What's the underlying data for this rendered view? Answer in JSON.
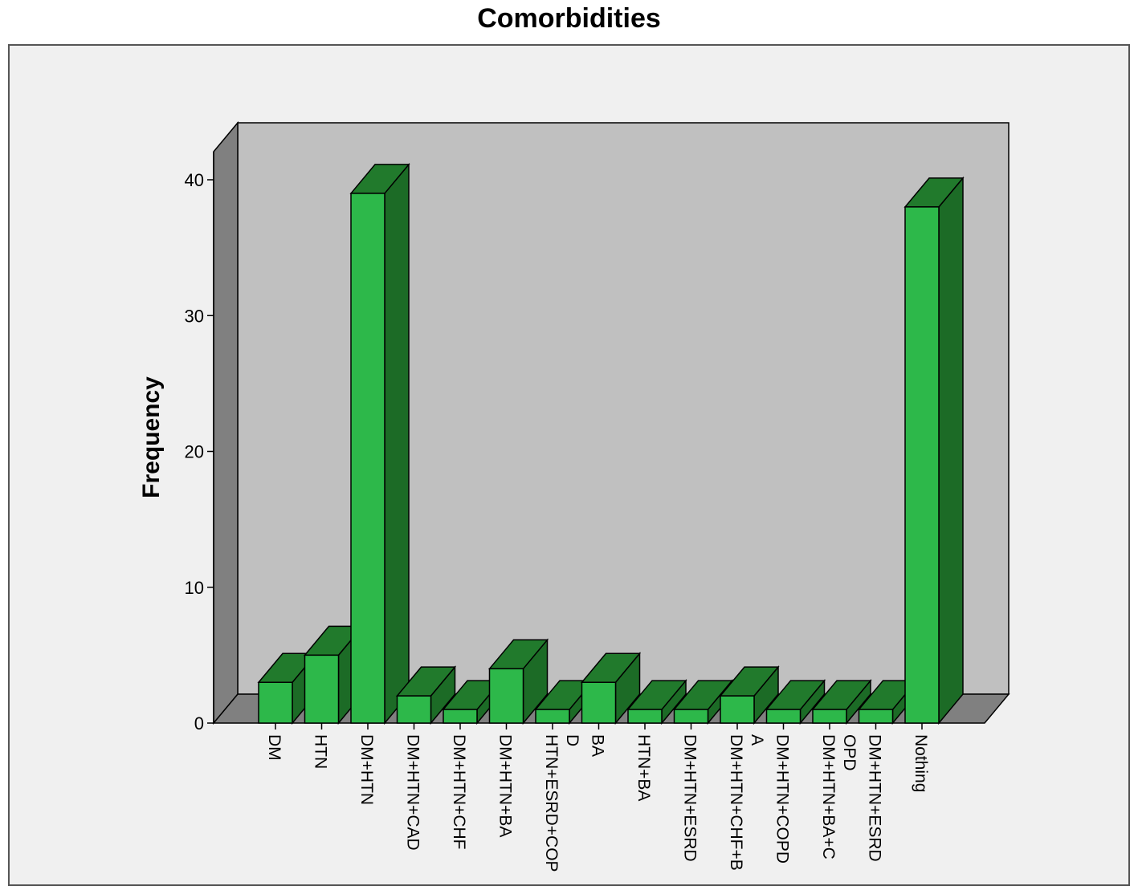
{
  "chart_data": {
    "type": "bar",
    "title": "Comorbidities",
    "xlabel": "",
    "ylabel": "Frequency",
    "ylim": [
      0,
      40
    ],
    "yticks": [
      0,
      10,
      20,
      30,
      40
    ],
    "grid": false,
    "categories": [
      [
        "DM"
      ],
      [
        "HTN"
      ],
      [
        "DM+HTN"
      ],
      [
        "DM+HTN+CAD"
      ],
      [
        "DM+HTN+CHF"
      ],
      [
        "DM+HTN+BA"
      ],
      [
        "HTN+ESRD+COP",
        "D"
      ],
      [
        "BA"
      ],
      [
        "HTN+BA"
      ],
      [
        "DM+HTN+ESRD"
      ],
      [
        "DM+HTN+CHF+B",
        "A"
      ],
      [
        "DM+HTN+COPD"
      ],
      [
        "DM+HTN+BA+C",
        "OPD"
      ],
      [
        "DM+HTN+ESRD"
      ],
      [
        "Nothing"
      ]
    ],
    "values": [
      3,
      5,
      39,
      2,
      1,
      4,
      1,
      3,
      1,
      1,
      2,
      1,
      1,
      1,
      38
    ],
    "colors": {
      "bar_front": "#2db84a",
      "bar_side": "#1c6b26",
      "bar_top": "#217a2c",
      "back_wall": "#c0c0c0",
      "left_wall": "#808080",
      "floor": "#808080",
      "background": "#f0f0f0"
    }
  }
}
